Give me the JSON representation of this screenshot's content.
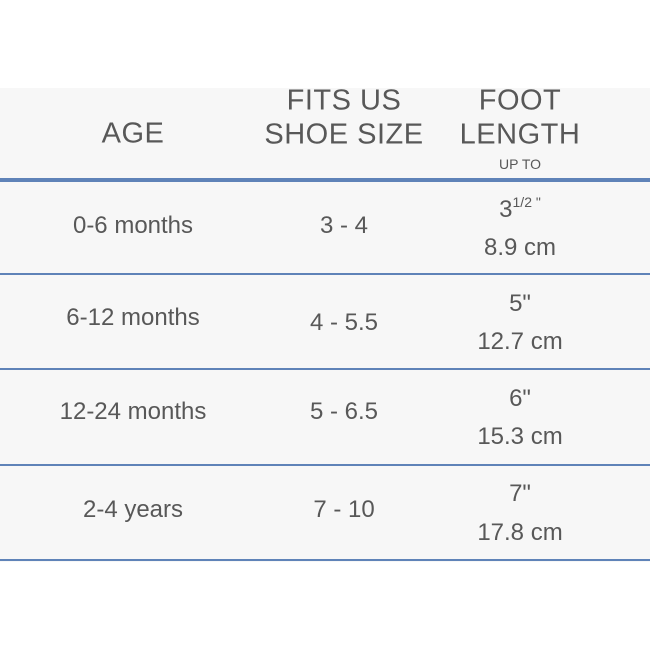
{
  "table": {
    "header": {
      "age": "AGE",
      "shoe_size": [
        "FITS US",
        "SHOE SIZE"
      ],
      "foot_length": [
        "FOOT",
        "LENGTH"
      ],
      "foot_length_note": "UP TO"
    },
    "rows": [
      {
        "age": "0-6 months",
        "shoe_size": "3 - 4",
        "foot_inches": "3",
        "foot_inches_fraction": "1/2 \"",
        "foot_cm": "8.9 cm"
      },
      {
        "age": "6-12 months",
        "shoe_size": "4 - 5.5",
        "foot_inches": "5\"",
        "foot_cm": "12.7 cm"
      },
      {
        "age": "12-24 months",
        "shoe_size": "5 - 6.5",
        "foot_inches": "6\"",
        "foot_cm": "15.3 cm"
      },
      {
        "age": "2-4 years",
        "shoe_size": "7 - 10",
        "foot_inches": "7\"",
        "foot_cm": "17.8 cm"
      }
    ]
  }
}
